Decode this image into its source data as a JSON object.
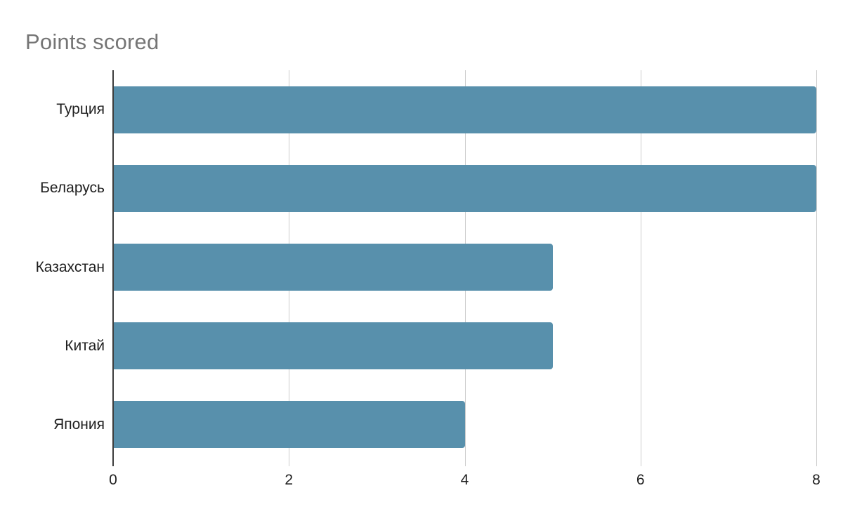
{
  "chart_data": {
    "type": "bar",
    "orientation": "horizontal",
    "title": "Points scored",
    "categories": [
      "Турция",
      "Беларусь",
      "Казахстан",
      "Китай",
      "Япония"
    ],
    "values": [
      8,
      8,
      5,
      5,
      4
    ],
    "xlabel": "",
    "ylabel": "",
    "xlim": [
      0,
      8
    ],
    "xticks": [
      0,
      2,
      4,
      6,
      8
    ],
    "grid": true,
    "legend_position": "none",
    "colors": {
      "bar": "#5890ac",
      "title": "#757575",
      "labels": "#1f1f1f",
      "gridline": "#cccccc",
      "baseline": "#3c3c3c",
      "background": "#ffffff"
    }
  }
}
